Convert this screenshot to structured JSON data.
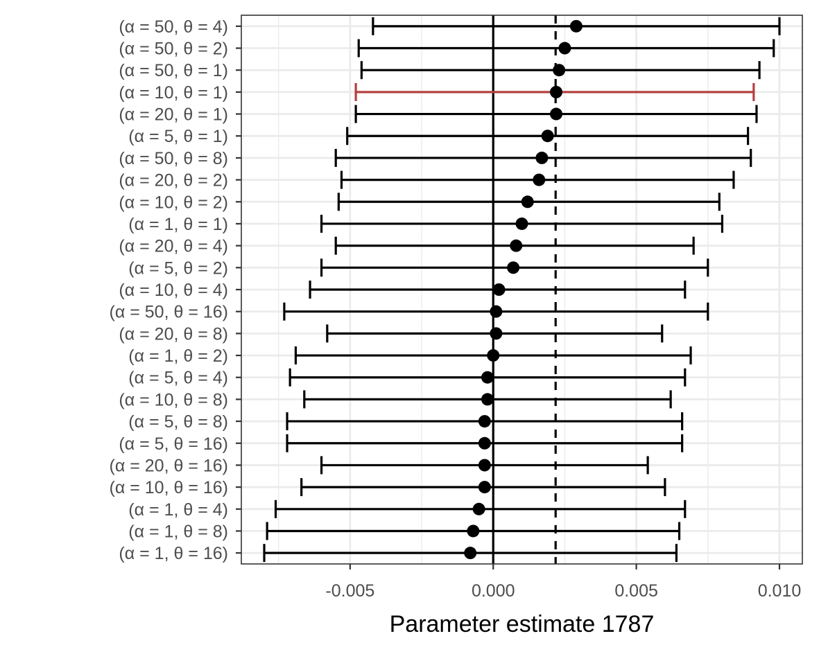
{
  "chart_data": {
    "type": "forest",
    "xlabel": "Parameter estimate 1787",
    "ylabel": "",
    "xlim": [
      -0.0088,
      0.0108
    ],
    "x_ticks": [
      {
        "value": -0.005,
        "label": "-0.005"
      },
      {
        "value": 0.0,
        "label": "0.000"
      },
      {
        "value": 0.005,
        "label": "0.005"
      },
      {
        "value": 0.01,
        "label": "0.010"
      }
    ],
    "reference_lines": [
      {
        "value": 0.0,
        "style": "solid"
      },
      {
        "value": 0.00218,
        "style": "dashed"
      }
    ],
    "grid": true,
    "legend": "none",
    "colors": {
      "default": "#000000",
      "highlight": "#b5403e",
      "grid": "#ebebeb",
      "panel_border": "#333333"
    },
    "rows": [
      {
        "label": "(α = 50, θ = 4)",
        "estimate": 0.0029,
        "lower": -0.0042,
        "upper": 0.01,
        "highlight": false
      },
      {
        "label": "(α = 50, θ = 2)",
        "estimate": 0.0025,
        "lower": -0.0047,
        "upper": 0.0098,
        "highlight": false
      },
      {
        "label": "(α = 50, θ = 1)",
        "estimate": 0.0023,
        "lower": -0.0046,
        "upper": 0.0093,
        "highlight": false
      },
      {
        "label": "(α = 10, θ = 1)",
        "estimate": 0.0022,
        "lower": -0.0048,
        "upper": 0.0091,
        "highlight": true
      },
      {
        "label": "(α = 20, θ = 1)",
        "estimate": 0.0022,
        "lower": -0.0048,
        "upper": 0.0092,
        "highlight": false
      },
      {
        "label": "(α = 5, θ = 1)",
        "estimate": 0.0019,
        "lower": -0.0051,
        "upper": 0.0089,
        "highlight": false
      },
      {
        "label": "(α = 50, θ = 8)",
        "estimate": 0.0017,
        "lower": -0.0055,
        "upper": 0.009,
        "highlight": false
      },
      {
        "label": "(α = 20, θ = 2)",
        "estimate": 0.0016,
        "lower": -0.0053,
        "upper": 0.0084,
        "highlight": false
      },
      {
        "label": "(α = 10, θ = 2)",
        "estimate": 0.0012,
        "lower": -0.0054,
        "upper": 0.0079,
        "highlight": false
      },
      {
        "label": "(α = 1, θ = 1)",
        "estimate": 0.001,
        "lower": -0.006,
        "upper": 0.008,
        "highlight": false
      },
      {
        "label": "(α = 20, θ = 4)",
        "estimate": 0.0008,
        "lower": -0.0055,
        "upper": 0.007,
        "highlight": false
      },
      {
        "label": "(α = 5, θ = 2)",
        "estimate": 0.0007,
        "lower": -0.006,
        "upper": 0.0075,
        "highlight": false
      },
      {
        "label": "(α = 10, θ = 4)",
        "estimate": 0.0002,
        "lower": -0.0064,
        "upper": 0.0067,
        "highlight": false
      },
      {
        "label": "(α = 50, θ = 16)",
        "estimate": 0.0001,
        "lower": -0.0073,
        "upper": 0.0075,
        "highlight": false
      },
      {
        "label": "(α = 20, θ = 8)",
        "estimate": 0.0001,
        "lower": -0.0058,
        "upper": 0.0059,
        "highlight": false
      },
      {
        "label": "(α = 1, θ = 2)",
        "estimate": 0.0,
        "lower": -0.0069,
        "upper": 0.0069,
        "highlight": false
      },
      {
        "label": "(α = 5, θ = 4)",
        "estimate": -0.0002,
        "lower": -0.0071,
        "upper": 0.0067,
        "highlight": false
      },
      {
        "label": "(α = 10, θ = 8)",
        "estimate": -0.0002,
        "lower": -0.0066,
        "upper": 0.0062,
        "highlight": false
      },
      {
        "label": "(α = 5, θ = 8)",
        "estimate": -0.0003,
        "lower": -0.0072,
        "upper": 0.0066,
        "highlight": false
      },
      {
        "label": "(α = 5, θ = 16)",
        "estimate": -0.0003,
        "lower": -0.0072,
        "upper": 0.0066,
        "highlight": false
      },
      {
        "label": "(α = 20, θ = 16)",
        "estimate": -0.0003,
        "lower": -0.006,
        "upper": 0.0054,
        "highlight": false
      },
      {
        "label": "(α = 10, θ = 16)",
        "estimate": -0.0003,
        "lower": -0.0067,
        "upper": 0.006,
        "highlight": false
      },
      {
        "label": "(α = 1, θ = 4)",
        "estimate": -0.0005,
        "lower": -0.0076,
        "upper": 0.0067,
        "highlight": false
      },
      {
        "label": "(α = 1, θ = 8)",
        "estimate": -0.0007,
        "lower": -0.0079,
        "upper": 0.0065,
        "highlight": false
      },
      {
        "label": "(α = 1, θ = 16)",
        "estimate": -0.0008,
        "lower": -0.008,
        "upper": 0.0064,
        "highlight": false
      }
    ]
  }
}
